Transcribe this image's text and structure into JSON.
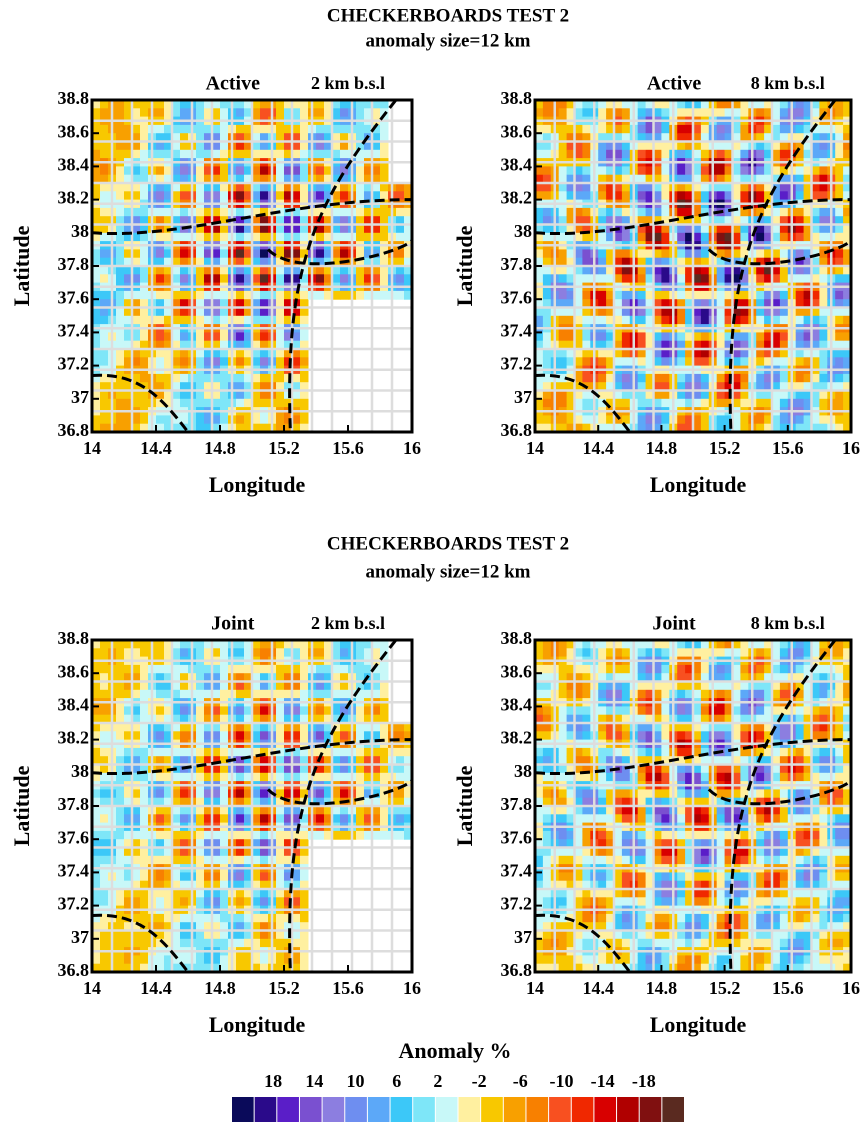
{
  "figures": [
    {
      "title": "CHECKERBOARDS TEST 2",
      "subtitle": "anomaly size=12 km",
      "panels": [
        {
          "type": "heatmap",
          "mode": "Active",
          "depth": "2 km b.s.l",
          "xlabel": "Longitude",
          "ylabel": "Latitude",
          "xlim": [
            14,
            16
          ],
          "ylim": [
            36.8,
            38.8
          ],
          "xticks": [
            14,
            14.4,
            14.8,
            15.2,
            15.6,
            16
          ],
          "yticks": [
            36.8,
            37,
            37.2,
            37.4,
            37.6,
            37.8,
            38,
            38.2,
            38.4,
            38.6,
            38.8
          ]
        },
        {
          "type": "heatmap",
          "mode": "Active",
          "depth": "8 km b.s.l",
          "xlabel": "Longitude",
          "ylabel": "Latitude",
          "xlim": [
            14,
            16
          ],
          "ylim": [
            36.8,
            38.8
          ],
          "xticks": [
            14,
            14.4,
            14.8,
            15.2,
            15.6,
            16
          ],
          "yticks": [
            36.8,
            37,
            37.2,
            37.4,
            37.6,
            37.8,
            38,
            38.2,
            38.4,
            38.6,
            38.8
          ]
        }
      ]
    },
    {
      "title": "CHECKERBOARDS TEST 2",
      "subtitle": "anomaly size=12 km",
      "panels": [
        {
          "type": "heatmap",
          "mode": "Joint",
          "depth": "2 km b.s.l",
          "xlabel": "Longitude",
          "ylabel": "Latitude",
          "xlim": [
            14,
            16
          ],
          "ylim": [
            36.8,
            38.8
          ],
          "xticks": [
            14,
            14.4,
            14.8,
            15.2,
            15.6,
            16
          ],
          "yticks": [
            36.8,
            37,
            37.2,
            37.4,
            37.6,
            37.8,
            38,
            38.2,
            38.4,
            38.6,
            38.8
          ]
        },
        {
          "type": "heatmap",
          "mode": "Joint",
          "depth": "8 km b.s.l",
          "xlabel": "Longitude",
          "ylabel": "Latitude",
          "xlim": [
            14,
            16
          ],
          "ylim": [
            36.8,
            38.8
          ],
          "xticks": [
            14,
            14.4,
            14.8,
            15.2,
            15.6,
            16
          ],
          "yticks": [
            36.8,
            37,
            37.2,
            37.4,
            37.6,
            37.8,
            38,
            38.2,
            38.4,
            38.6,
            38.8
          ]
        }
      ]
    }
  ],
  "colorbar": {
    "title": "Anomaly %",
    "ticks": [
      18,
      14,
      10,
      6,
      2,
      -2,
      -6,
      -10,
      -14,
      -18
    ],
    "colors": [
      "#0a0a5a",
      "#2a0a8a",
      "#5a1ec8",
      "#7a50d0",
      "#8c7ee0",
      "#6e8ef0",
      "#5ca8f8",
      "#3cc8f8",
      "#7ee6f8",
      "#c8f8f8",
      "#fff0a0",
      "#f8c800",
      "#f8a000",
      "#f88000",
      "#f85020",
      "#f02800",
      "#d80000",
      "#b00000",
      "#801010",
      "#5a2a20"
    ]
  }
}
